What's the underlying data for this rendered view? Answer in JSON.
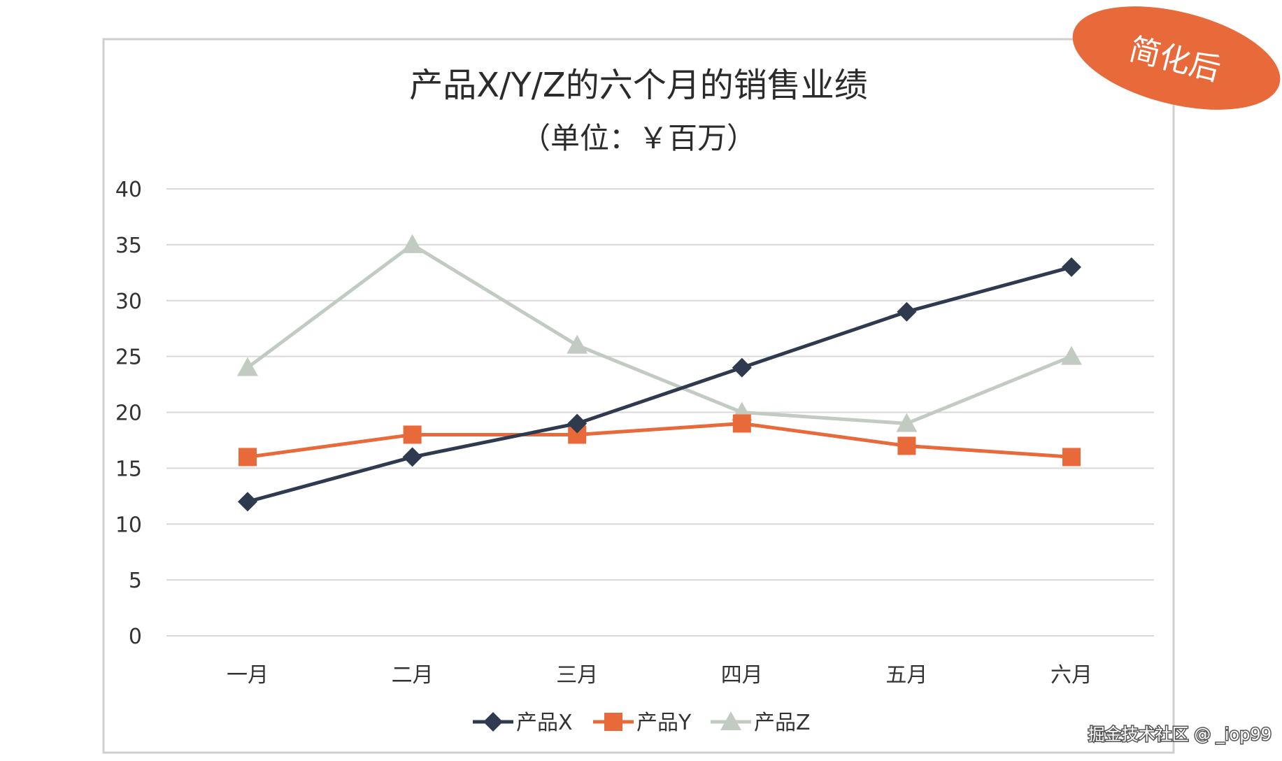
{
  "chart_data": {
    "type": "line",
    "title": "产品X/Y/Z的六个月的销售业绩",
    "subtitle": "（单位：￥百万）",
    "categories": [
      "一月",
      "二月",
      "三月",
      "四月",
      "五月",
      "六月"
    ],
    "y_ticks": [
      "0",
      "5",
      "10",
      "15",
      "20",
      "25",
      "30",
      "35",
      "40"
    ],
    "ylim": [
      0,
      40
    ],
    "grid": true,
    "legend_position": "bottom",
    "series": [
      {
        "name": "产品X",
        "color": "#2f3a4f",
        "marker": "diamond",
        "values": [
          12,
          16,
          19,
          24,
          29,
          33
        ]
      },
      {
        "name": "产品Y",
        "color": "#e8693a",
        "marker": "square",
        "values": [
          16,
          18,
          18,
          19,
          17,
          16
        ]
      },
      {
        "name": "产品Z",
        "color": "#c2cbc2",
        "marker": "triangle",
        "values": [
          24,
          35,
          26,
          20,
          19,
          25
        ]
      }
    ]
  },
  "badge": {
    "label": "简化后",
    "color": "#e8693a"
  },
  "watermark": {
    "text": "掘金技术社区 @ _iop99"
  }
}
